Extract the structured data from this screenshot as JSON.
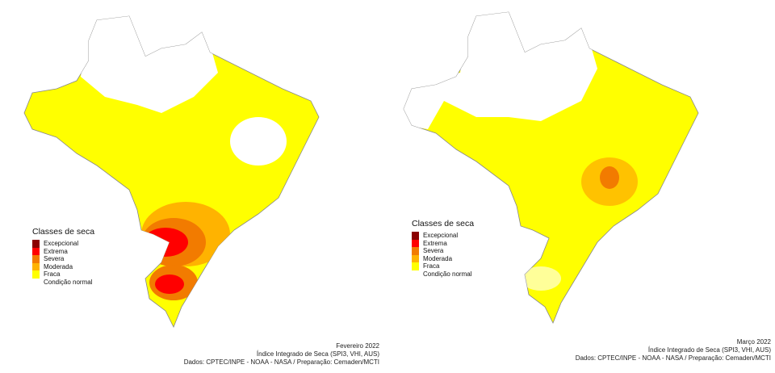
{
  "colors": {
    "excepcional": "#8b0000",
    "extrema": "#ff0000",
    "severa": "#f27b00",
    "moderada": "#ffb300",
    "fraca": "#ffff00",
    "normal": "#ffffff",
    "border": "#888888"
  },
  "panels": [
    {
      "legend": {
        "title": "Classes de seca",
        "items": [
          "Excepcional",
          "Extrema",
          "Severa",
          "Moderada",
          "Fraca",
          "Condição normal"
        ]
      },
      "caption": {
        "period": "Fevereiro 2022",
        "index": "Índice Integrado de Seca (SPI3, VHI, AUS)",
        "source": "Dados: CPTEC/INPE - NOAA - NASA / Preparação: Cemaden/MCTI"
      }
    },
    {
      "legend": {
        "title": "Classes de seca",
        "items": [
          "Excepcional",
          "Extrema",
          "Severa",
          "Moderada",
          "Fraca",
          "Condição normal"
        ]
      },
      "caption": {
        "period": "Março 2022",
        "index": "Índice Integrado de Seca (SPI3, VHI, AUS)",
        "source": "Dados: CPTEC/INPE - NOAA - NASA / Preparação: Cemaden/MCTI"
      }
    }
  ]
}
